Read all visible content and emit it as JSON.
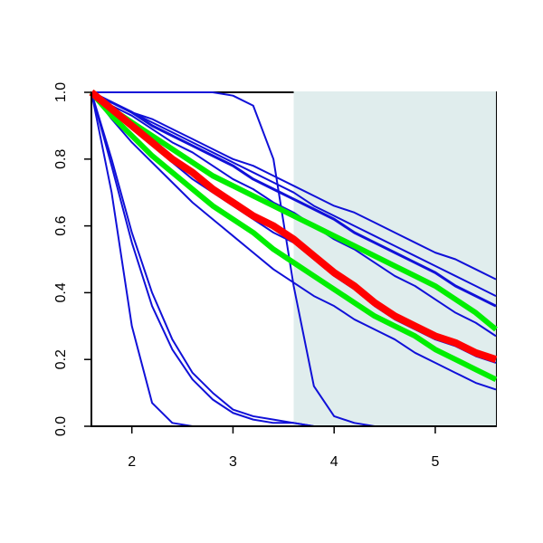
{
  "chart_data": {
    "type": "line",
    "x": [
      1.6,
      1.8,
      2.0,
      2.2,
      2.4,
      2.6,
      2.8,
      3.0,
      3.2,
      3.4,
      3.6,
      3.8,
      4.0,
      4.2,
      4.4,
      4.6,
      4.8,
      5.0,
      5.2,
      5.4,
      5.6
    ],
    "xlim": [
      1.6,
      5.6
    ],
    "ylim": [
      0,
      1
    ],
    "xticks": [
      2,
      3,
      4,
      5
    ],
    "yticks": [
      {
        "value": 0,
        "label": "0.0"
      },
      0.2,
      0.4,
      0.6,
      0.8,
      {
        "value": 1,
        "label": "1.0"
      }
    ],
    "highlight_x": [
      3.6,
      5.6
    ],
    "highlight_color": "#e0eded",
    "series": [
      {
        "color": "#1010d8",
        "line_width": 2,
        "values": [
          1,
          1,
          1,
          1,
          1,
          1,
          1,
          0.99,
          0.96,
          0.8,
          0.42,
          0.12,
          0.03,
          0.01,
          0,
          0,
          0,
          0,
          0,
          0,
          0
        ]
      },
      {
        "color": "#1010d8",
        "line_width": 2,
        "values": [
          1,
          0.7,
          0.3,
          0.07,
          0.01,
          0,
          0,
          0,
          0,
          0,
          0,
          0,
          0,
          0,
          0,
          0,
          0,
          0,
          0,
          0,
          0
        ]
      },
      {
        "color": "#1010d8",
        "line_width": 2,
        "values": [
          1,
          0.8,
          0.58,
          0.4,
          0.26,
          0.16,
          0.1,
          0.05,
          0.03,
          0.02,
          0.01,
          0,
          0,
          0,
          0,
          0,
          0,
          0,
          0,
          0,
          0
        ]
      },
      {
        "color": "#1010d8",
        "line_width": 2,
        "values": [
          1,
          0.78,
          0.55,
          0.36,
          0.23,
          0.14,
          0.08,
          0.04,
          0.02,
          0.01,
          0.01,
          0,
          0,
          0,
          0,
          0,
          0,
          0,
          0,
          0,
          0
        ]
      },
      {
        "color": "#1010d8",
        "line_width": 2,
        "values": [
          1,
          0.97,
          0.94,
          0.92,
          0.89,
          0.86,
          0.83,
          0.8,
          0.78,
          0.75,
          0.72,
          0.69,
          0.66,
          0.64,
          0.61,
          0.58,
          0.55,
          0.52,
          0.5,
          0.47,
          0.44
        ]
      },
      {
        "color": "#1010d8",
        "line_width": 2,
        "values": [
          1,
          0.97,
          0.94,
          0.91,
          0.88,
          0.85,
          0.82,
          0.79,
          0.76,
          0.73,
          0.7,
          0.66,
          0.63,
          0.6,
          0.57,
          0.54,
          0.51,
          0.48,
          0.45,
          0.42,
          0.39
        ]
      },
      {
        "color": "#1010d8",
        "line_width": 3,
        "values": [
          1,
          0.97,
          0.94,
          0.9,
          0.87,
          0.84,
          0.81,
          0.78,
          0.74,
          0.71,
          0.68,
          0.65,
          0.62,
          0.58,
          0.55,
          0.52,
          0.49,
          0.46,
          0.42,
          0.39,
          0.36
        ]
      },
      {
        "color": "#1010d8",
        "line_width": 2,
        "values": [
          1,
          0.96,
          0.93,
          0.89,
          0.85,
          0.82,
          0.78,
          0.74,
          0.71,
          0.67,
          0.64,
          0.6,
          0.56,
          0.53,
          0.49,
          0.45,
          0.42,
          0.38,
          0.34,
          0.31,
          0.27
        ]
      },
      {
        "color": "#1010d8",
        "line_width": 2,
        "values": [
          1,
          0.95,
          0.89,
          0.84,
          0.79,
          0.74,
          0.7,
          0.66,
          0.62,
          0.58,
          0.55,
          0.5,
          0.45,
          0.41,
          0.36,
          0.32,
          0.29,
          0.26,
          0.24,
          0.21,
          0.19
        ]
      },
      {
        "color": "#1010d8",
        "line_width": 2,
        "values": [
          1,
          0.92,
          0.85,
          0.79,
          0.73,
          0.67,
          0.62,
          0.57,
          0.52,
          0.47,
          0.43,
          0.39,
          0.36,
          0.32,
          0.29,
          0.26,
          0.22,
          0.19,
          0.16,
          0.13,
          0.11
        ]
      },
      {
        "color": "#00ee00",
        "line_width": 6,
        "values": [
          1,
          0.95,
          0.91,
          0.87,
          0.83,
          0.79,
          0.75,
          0.72,
          0.69,
          0.66,
          0.63,
          0.6,
          0.57,
          0.54,
          0.51,
          0.48,
          0.45,
          0.42,
          0.38,
          0.34,
          0.29
        ]
      },
      {
        "color": "#00ee00",
        "line_width": 6,
        "values": [
          1,
          0.93,
          0.87,
          0.81,
          0.76,
          0.71,
          0.66,
          0.62,
          0.58,
          0.53,
          0.49,
          0.45,
          0.41,
          0.37,
          0.33,
          0.3,
          0.27,
          0.23,
          0.2,
          0.17,
          0.14
        ]
      },
      {
        "color": "#ff0000",
        "line_width": 8,
        "values": [
          1,
          0.95,
          0.9,
          0.85,
          0.8,
          0.76,
          0.71,
          0.67,
          0.63,
          0.6,
          0.56,
          0.51,
          0.46,
          0.42,
          0.37,
          0.33,
          0.3,
          0.27,
          0.25,
          0.22,
          0.2
        ]
      }
    ]
  }
}
